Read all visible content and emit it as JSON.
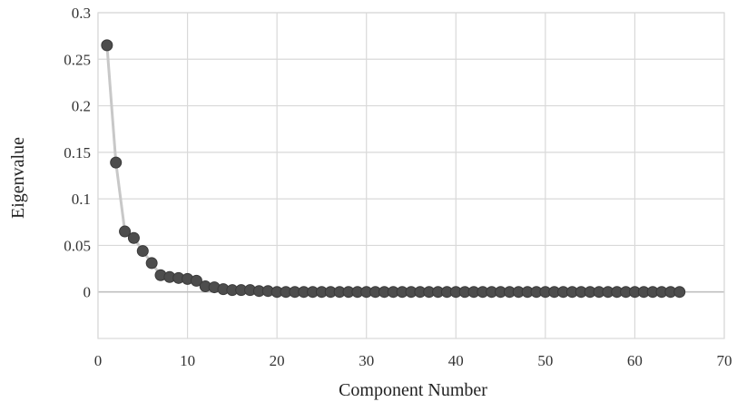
{
  "chart_data": {
    "type": "scatter",
    "title": "",
    "xlabel": "Component Number",
    "ylabel": "Eigenvalue",
    "xlim": [
      0,
      70
    ],
    "ylim": [
      -0.05,
      0.3
    ],
    "x_ticks": [
      0,
      10,
      20,
      30,
      40,
      50,
      60,
      70
    ],
    "x_tick_labels": [
      "0",
      "10",
      "20",
      "30",
      "40",
      "50",
      "60",
      "70"
    ],
    "y_ticks": [
      0,
      0.05,
      0.1,
      0.15,
      0.2,
      0.25,
      0.3
    ],
    "y_tick_labels": [
      "0",
      "0.05",
      "0.1",
      "0.15",
      "0.2",
      "0.25",
      "0.3"
    ],
    "grid": true,
    "legend": "none",
    "colors": {
      "marker": "#4d4d4d",
      "line": "#c8c8c8",
      "grid": "#d9d9d9",
      "zero_line": "#bfbfbf"
    },
    "series": [
      {
        "x": [
          1,
          2,
          3,
          4,
          5,
          6,
          7,
          8,
          9,
          10,
          11,
          12,
          13,
          14,
          15,
          16,
          17,
          18,
          19,
          20,
          21,
          22,
          23,
          24,
          25,
          26,
          27,
          28,
          29,
          30,
          31,
          32,
          33,
          34,
          35,
          36,
          37,
          38,
          39,
          40,
          41,
          42,
          43,
          44,
          45,
          46,
          47,
          48,
          49,
          50,
          51,
          52,
          53,
          54,
          55,
          56,
          57,
          58,
          59,
          60,
          61,
          62,
          63,
          64,
          65
        ],
        "y": [
          0.265,
          0.139,
          0.065,
          0.058,
          0.044,
          0.031,
          0.018,
          0.016,
          0.015,
          0.014,
          0.012,
          0.006,
          0.005,
          0.003,
          0.002,
          0.002,
          0.002,
          0.001,
          0.001,
          0,
          0,
          0,
          0,
          0,
          0,
          0,
          0,
          0,
          0,
          0,
          0,
          0,
          0,
          0,
          0,
          0,
          0,
          0,
          0,
          0,
          0,
          0,
          0,
          0,
          0,
          0,
          0,
          0,
          0,
          0,
          0,
          0,
          0,
          0,
          0,
          0,
          0,
          0,
          0,
          0,
          0,
          0,
          0,
          0,
          0
        ]
      }
    ]
  }
}
